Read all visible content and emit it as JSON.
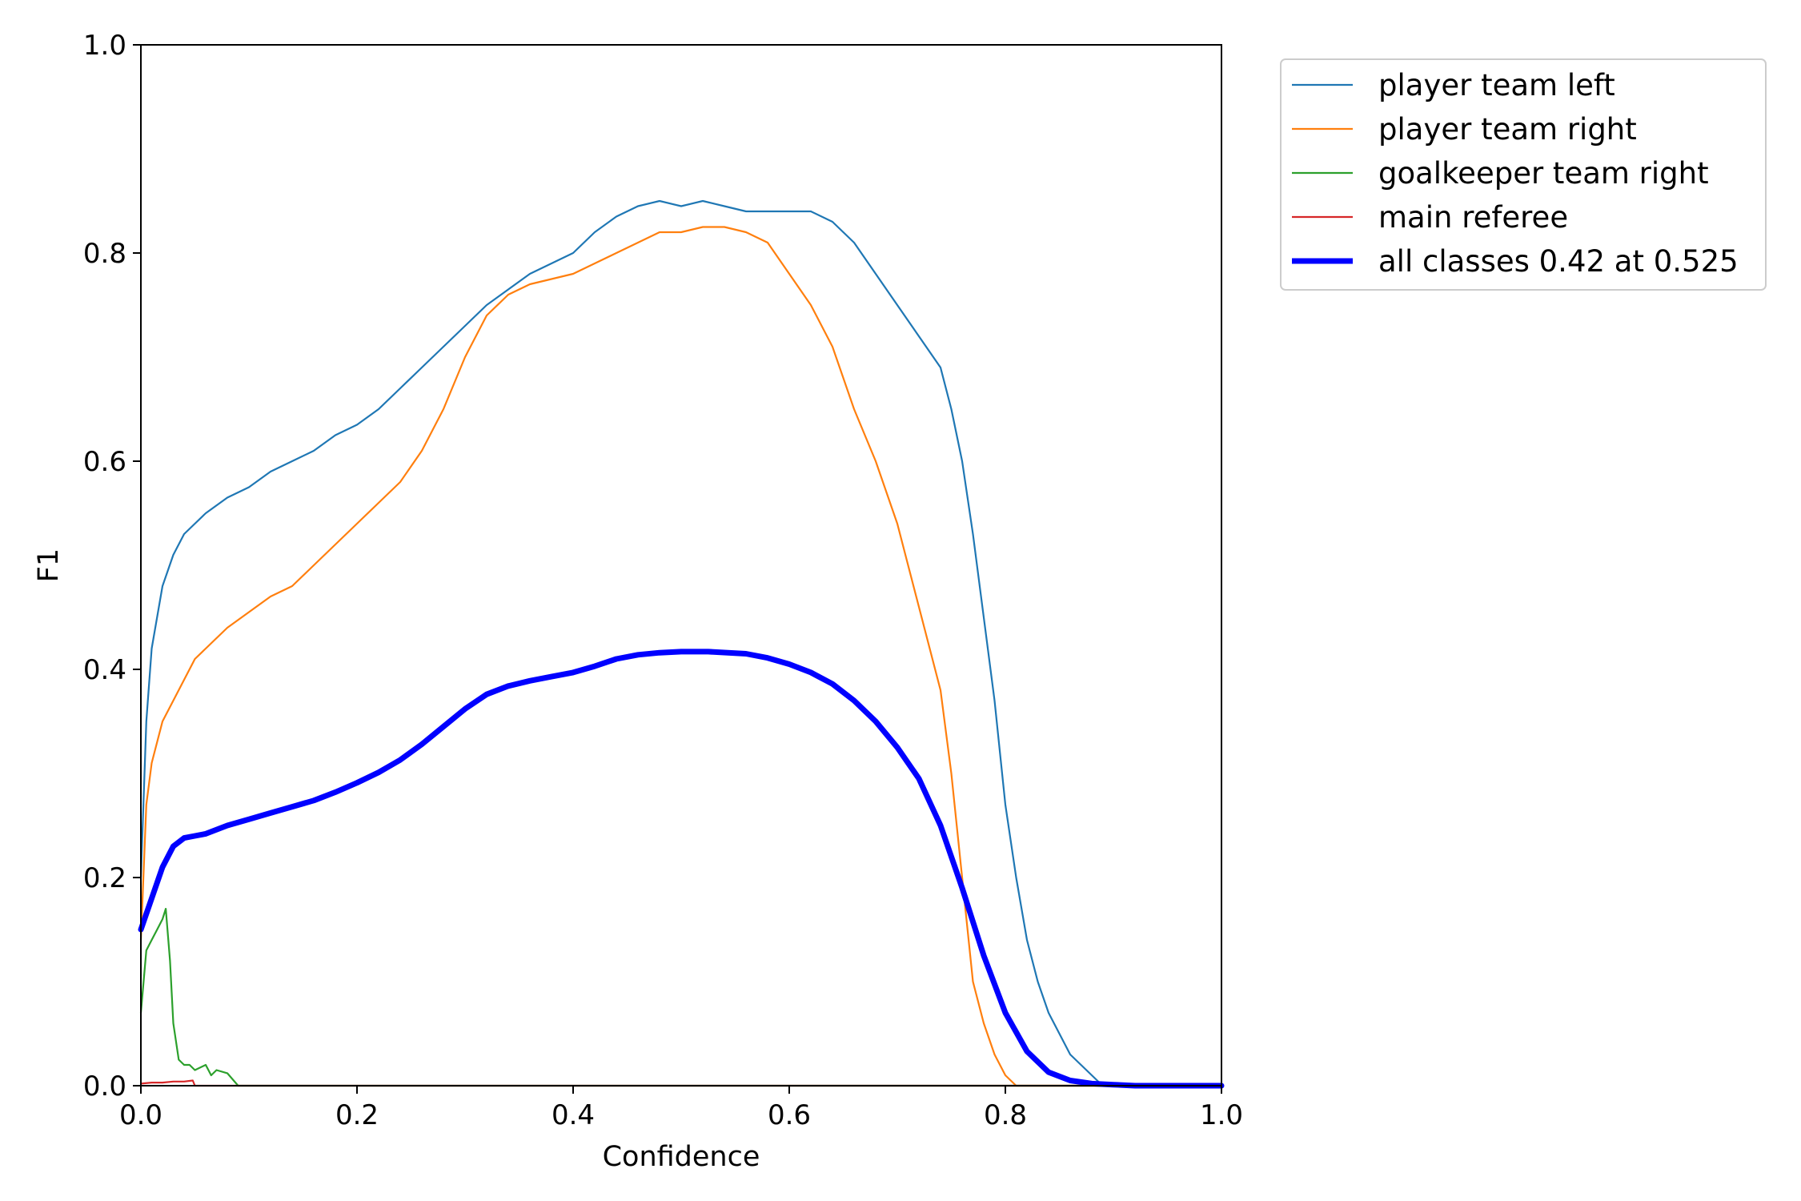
{
  "chart_data": {
    "type": "line",
    "xlabel": "Confidence",
    "ylabel": "F1",
    "xlim": [
      0.0,
      1.0
    ],
    "ylim": [
      0.0,
      1.0
    ],
    "xticks": [
      "0.0",
      "0.2",
      "0.4",
      "0.6",
      "0.8",
      "1.0"
    ],
    "yticks": [
      "0.0",
      "0.2",
      "0.4",
      "0.6",
      "0.8",
      "1.0"
    ],
    "grid": false,
    "legend_position": "outside-top-right",
    "series": [
      {
        "name": "player team left",
        "color": "#1f77b4",
        "width": "thin",
        "x": [
          0.0,
          0.005,
          0.01,
          0.02,
          0.03,
          0.04,
          0.05,
          0.06,
          0.08,
          0.1,
          0.12,
          0.14,
          0.16,
          0.18,
          0.2,
          0.22,
          0.24,
          0.26,
          0.28,
          0.3,
          0.32,
          0.34,
          0.36,
          0.38,
          0.4,
          0.42,
          0.44,
          0.46,
          0.48,
          0.5,
          0.52,
          0.54,
          0.56,
          0.58,
          0.6,
          0.62,
          0.64,
          0.66,
          0.68,
          0.7,
          0.72,
          0.74,
          0.75,
          0.76,
          0.77,
          0.78,
          0.79,
          0.8,
          0.81,
          0.82,
          0.83,
          0.84,
          0.85,
          0.86,
          0.87,
          0.88,
          0.89,
          0.9,
          1.0
        ],
        "y": [
          0.2,
          0.35,
          0.42,
          0.48,
          0.51,
          0.53,
          0.54,
          0.55,
          0.565,
          0.575,
          0.59,
          0.6,
          0.61,
          0.625,
          0.635,
          0.65,
          0.67,
          0.69,
          0.71,
          0.73,
          0.75,
          0.765,
          0.78,
          0.79,
          0.8,
          0.82,
          0.835,
          0.845,
          0.85,
          0.845,
          0.85,
          0.845,
          0.84,
          0.84,
          0.84,
          0.84,
          0.83,
          0.81,
          0.78,
          0.75,
          0.72,
          0.69,
          0.65,
          0.6,
          0.53,
          0.45,
          0.37,
          0.27,
          0.2,
          0.14,
          0.1,
          0.07,
          0.05,
          0.03,
          0.02,
          0.01,
          0.0,
          0.0,
          0.0
        ]
      },
      {
        "name": "player team right",
        "color": "#ff7f0e",
        "width": "thin",
        "x": [
          0.0,
          0.005,
          0.01,
          0.02,
          0.03,
          0.04,
          0.05,
          0.06,
          0.08,
          0.1,
          0.12,
          0.14,
          0.16,
          0.18,
          0.2,
          0.22,
          0.24,
          0.26,
          0.28,
          0.3,
          0.32,
          0.34,
          0.36,
          0.38,
          0.4,
          0.42,
          0.44,
          0.46,
          0.48,
          0.5,
          0.52,
          0.54,
          0.56,
          0.58,
          0.6,
          0.62,
          0.64,
          0.66,
          0.68,
          0.7,
          0.72,
          0.74,
          0.75,
          0.76,
          0.77,
          0.78,
          0.79,
          0.8,
          0.81,
          1.0
        ],
        "y": [
          0.14,
          0.27,
          0.31,
          0.35,
          0.37,
          0.39,
          0.41,
          0.42,
          0.44,
          0.455,
          0.47,
          0.48,
          0.5,
          0.52,
          0.54,
          0.56,
          0.58,
          0.61,
          0.65,
          0.7,
          0.74,
          0.76,
          0.77,
          0.775,
          0.78,
          0.79,
          0.8,
          0.81,
          0.82,
          0.82,
          0.825,
          0.825,
          0.82,
          0.81,
          0.78,
          0.75,
          0.71,
          0.65,
          0.6,
          0.54,
          0.46,
          0.38,
          0.3,
          0.2,
          0.1,
          0.06,
          0.03,
          0.01,
          0.0,
          0.0
        ]
      },
      {
        "name": "goalkeeper team right",
        "color": "#2ca02c",
        "width": "thin",
        "x": [
          0.0,
          0.005,
          0.01,
          0.015,
          0.02,
          0.023,
          0.027,
          0.03,
          0.035,
          0.04,
          0.045,
          0.05,
          0.06,
          0.065,
          0.07,
          0.08,
          0.09,
          1.0
        ],
        "y": [
          0.07,
          0.13,
          0.14,
          0.15,
          0.16,
          0.17,
          0.12,
          0.06,
          0.025,
          0.02,
          0.02,
          0.015,
          0.02,
          0.01,
          0.015,
          0.012,
          0.0,
          0.0
        ]
      },
      {
        "name": "main referee",
        "color": "#d62728",
        "width": "thin",
        "x": [
          0.0,
          0.01,
          0.02,
          0.03,
          0.04,
          0.048,
          0.05,
          1.0
        ],
        "y": [
          0.002,
          0.003,
          0.003,
          0.004,
          0.004,
          0.005,
          0.0,
          0.0
        ]
      },
      {
        "name": "all classes 0.42 at 0.525",
        "color": "#0000ff",
        "width": "thick",
        "x": [
          0.0,
          0.01,
          0.02,
          0.03,
          0.04,
          0.05,
          0.06,
          0.08,
          0.1,
          0.12,
          0.14,
          0.16,
          0.18,
          0.2,
          0.22,
          0.24,
          0.26,
          0.28,
          0.3,
          0.32,
          0.34,
          0.36,
          0.38,
          0.4,
          0.42,
          0.44,
          0.46,
          0.48,
          0.5,
          0.525,
          0.56,
          0.58,
          0.6,
          0.62,
          0.64,
          0.66,
          0.68,
          0.7,
          0.72,
          0.74,
          0.76,
          0.78,
          0.8,
          0.82,
          0.84,
          0.86,
          0.88,
          0.9,
          0.92,
          1.0
        ],
        "y": [
          0.15,
          0.18,
          0.21,
          0.23,
          0.238,
          0.24,
          0.242,
          0.25,
          0.256,
          0.262,
          0.268,
          0.274,
          0.282,
          0.291,
          0.301,
          0.313,
          0.328,
          0.345,
          0.362,
          0.376,
          0.384,
          0.389,
          0.393,
          0.397,
          0.403,
          0.41,
          0.414,
          0.416,
          0.417,
          0.417,
          0.415,
          0.411,
          0.405,
          0.397,
          0.386,
          0.37,
          0.35,
          0.325,
          0.295,
          0.25,
          0.19,
          0.125,
          0.07,
          0.033,
          0.013,
          0.005,
          0.002,
          0.001,
          0.0,
          0.0
        ]
      }
    ]
  }
}
